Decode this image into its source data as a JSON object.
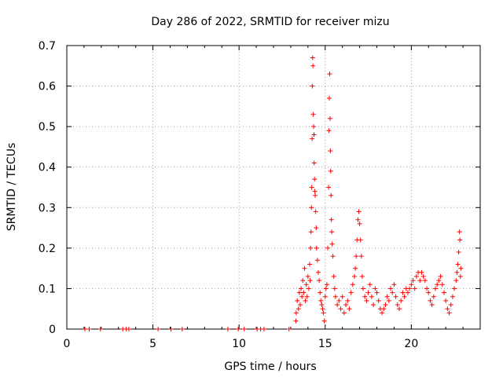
{
  "chart_data": {
    "type": "scatter",
    "title": "Day 286 of 2022, SRMTID for receiver mizu",
    "xlabel": "GPS time / hours",
    "ylabel": "SRMTID / TECUs",
    "xlim": [
      0,
      24
    ],
    "ylim": [
      0,
      0.7
    ],
    "xticks": [
      0,
      5,
      10,
      15,
      20
    ],
    "xtick_labels": [
      "0",
      "5",
      "10",
      "15",
      "20"
    ],
    "yticks": [
      0,
      0.1,
      0.2,
      0.3,
      0.4,
      0.5,
      0.6,
      0.7
    ],
    "ytick_labels": [
      "0",
      "0.1",
      "0.2",
      "0.3",
      "0.4",
      "0.5",
      "0.6",
      "0.7"
    ],
    "grid": true,
    "marker": "+",
    "series": [
      {
        "name": "mizu",
        "color": "#ff0000",
        "points": [
          [
            1.05,
            0
          ],
          [
            1.3,
            0
          ],
          [
            1.95,
            0
          ],
          [
            3.25,
            0
          ],
          [
            3.45,
            0
          ],
          [
            3.6,
            0
          ],
          [
            5.3,
            0
          ],
          [
            6.05,
            0
          ],
          [
            6.7,
            0
          ],
          [
            9.35,
            0
          ],
          [
            9.95,
            0
          ],
          [
            10.3,
            0
          ],
          [
            11.05,
            0
          ],
          [
            11.25,
            0
          ],
          [
            11.45,
            0
          ],
          [
            12.9,
            0
          ],
          [
            13.3,
            0.02
          ],
          [
            13.32,
            0.04
          ],
          [
            13.38,
            0.07
          ],
          [
            13.45,
            0.05
          ],
          [
            13.5,
            0.09
          ],
          [
            13.55,
            0.06
          ],
          [
            13.6,
            0.1
          ],
          [
            13.65,
            0.08
          ],
          [
            13.7,
            0.12
          ],
          [
            13.75,
            0.09
          ],
          [
            13.8,
            0.15
          ],
          [
            13.85,
            0.07
          ],
          [
            13.9,
            0.11
          ],
          [
            13.95,
            0.08
          ],
          [
            14.0,
            0.13
          ],
          [
            14.05,
            0.1
          ],
          [
            14.1,
            0.16
          ],
          [
            14.12,
            0.12
          ],
          [
            14.15,
            0.2
          ],
          [
            14.18,
            0.24
          ],
          [
            14.2,
            0.3
          ],
          [
            14.22,
            0.35
          ],
          [
            14.24,
            0.47
          ],
          [
            14.25,
            0.6
          ],
          [
            14.27,
            0.67
          ],
          [
            14.29,
            0.65
          ],
          [
            14.31,
            0.53
          ],
          [
            14.33,
            0.5
          ],
          [
            14.35,
            0.48
          ],
          [
            14.36,
            0.41
          ],
          [
            14.38,
            0.37
          ],
          [
            14.4,
            0.34
          ],
          [
            14.42,
            0.33
          ],
          [
            14.45,
            0.29
          ],
          [
            14.48,
            0.25
          ],
          [
            14.5,
            0.2
          ],
          [
            14.55,
            0.17
          ],
          [
            14.6,
            0.14
          ],
          [
            14.65,
            0.12
          ],
          [
            14.7,
            0.09
          ],
          [
            14.75,
            0.07
          ],
          [
            14.8,
            0.06
          ],
          [
            14.85,
            0.05
          ],
          [
            14.9,
            0.04
          ],
          [
            14.95,
            0.02
          ],
          [
            15.0,
            0.08
          ],
          [
            15.05,
            0.1
          ],
          [
            15.1,
            0.11
          ],
          [
            15.15,
            0.2
          ],
          [
            15.2,
            0.35
          ],
          [
            15.22,
            0.49
          ],
          [
            15.24,
            0.57
          ],
          [
            15.26,
            0.63
          ],
          [
            15.28,
            0.52
          ],
          [
            15.3,
            0.44
          ],
          [
            15.32,
            0.39
          ],
          [
            15.34,
            0.33
          ],
          [
            15.36,
            0.27
          ],
          [
            15.38,
            0.24
          ],
          [
            15.4,
            0.21
          ],
          [
            15.45,
            0.18
          ],
          [
            15.5,
            0.13
          ],
          [
            15.55,
            0.1
          ],
          [
            15.6,
            0.08
          ],
          [
            15.7,
            0.06
          ],
          [
            15.8,
            0.07
          ],
          [
            15.9,
            0.05
          ],
          [
            16.0,
            0.08
          ],
          [
            16.1,
            0.04
          ],
          [
            16.2,
            0.06
          ],
          [
            16.3,
            0.07
          ],
          [
            16.4,
            0.05
          ],
          [
            16.5,
            0.09
          ],
          [
            16.6,
            0.11
          ],
          [
            16.7,
            0.13
          ],
          [
            16.75,
            0.15
          ],
          [
            16.8,
            0.18
          ],
          [
            16.85,
            0.22
          ],
          [
            16.9,
            0.27
          ],
          [
            16.95,
            0.29
          ],
          [
            17.0,
            0.26
          ],
          [
            17.05,
            0.22
          ],
          [
            17.1,
            0.18
          ],
          [
            17.15,
            0.13
          ],
          [
            17.2,
            0.1
          ],
          [
            17.3,
            0.08
          ],
          [
            17.4,
            0.07
          ],
          [
            17.5,
            0.09
          ],
          [
            17.6,
            0.11
          ],
          [
            17.7,
            0.08
          ],
          [
            17.8,
            0.06
          ],
          [
            17.9,
            0.1
          ],
          [
            18.0,
            0.09
          ],
          [
            18.1,
            0.07
          ],
          [
            18.2,
            0.05
          ],
          [
            18.3,
            0.04
          ],
          [
            18.4,
            0.05
          ],
          [
            18.5,
            0.06
          ],
          [
            18.6,
            0.08
          ],
          [
            18.7,
            0.07
          ],
          [
            18.8,
            0.1
          ],
          [
            18.9,
            0.09
          ],
          [
            19.0,
            0.11
          ],
          [
            19.1,
            0.08
          ],
          [
            19.2,
            0.06
          ],
          [
            19.3,
            0.05
          ],
          [
            19.4,
            0.07
          ],
          [
            19.5,
            0.09
          ],
          [
            19.6,
            0.08
          ],
          [
            19.7,
            0.1
          ],
          [
            19.8,
            0.09
          ],
          [
            19.9,
            0.1
          ],
          [
            20.0,
            0.11
          ],
          [
            20.1,
            0.12
          ],
          [
            20.2,
            0.1
          ],
          [
            20.3,
            0.13
          ],
          [
            20.4,
            0.14
          ],
          [
            20.5,
            0.12
          ],
          [
            20.6,
            0.14
          ],
          [
            20.7,
            0.13
          ],
          [
            20.8,
            0.12
          ],
          [
            20.9,
            0.1
          ],
          [
            21.0,
            0.09
          ],
          [
            21.1,
            0.07
          ],
          [
            21.2,
            0.06
          ],
          [
            21.3,
            0.08
          ],
          [
            21.4,
            0.1
          ],
          [
            21.5,
            0.11
          ],
          [
            21.6,
            0.12
          ],
          [
            21.7,
            0.13
          ],
          [
            21.8,
            0.11
          ],
          [
            21.9,
            0.09
          ],
          [
            22.0,
            0.07
          ],
          [
            22.1,
            0.05
          ],
          [
            22.2,
            0.04
          ],
          [
            22.3,
            0.06
          ],
          [
            22.4,
            0.08
          ],
          [
            22.5,
            0.1
          ],
          [
            22.6,
            0.12
          ],
          [
            22.65,
            0.14
          ],
          [
            22.7,
            0.16
          ],
          [
            22.75,
            0.19
          ],
          [
            22.8,
            0.24
          ],
          [
            22.82,
            0.22
          ],
          [
            22.85,
            0.13
          ],
          [
            22.88,
            0.15
          ]
        ]
      }
    ]
  }
}
